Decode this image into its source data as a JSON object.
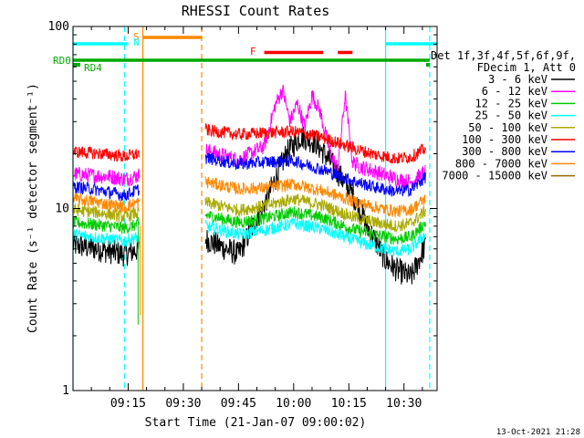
{
  "chart_data": {
    "type": "line",
    "title": "RHESSI Count Rates",
    "xlabel": "Start Time (21-Jan-07 09:00:02)",
    "ylabel": "Count Rate (s⁻¹ detector segment⁻¹)",
    "y_scale": "log",
    "ylim": [
      1,
      100
    ],
    "xlim_minutes": [
      0,
      99
    ],
    "x_ticks": [
      "09:15",
      "09:30",
      "09:45",
      "10:00",
      "10:15",
      "10:30"
    ],
    "x_tick_minutes": [
      15,
      30,
      45,
      60,
      75,
      90
    ],
    "y_ticks": [
      "1",
      "10",
      "100"
    ],
    "y_tick_values": [
      1,
      10,
      100
    ],
    "legend_header": [
      "Det 1f,3f,4f,5f,6f,9f,",
      "FDecim 1, Att 0"
    ],
    "legend_position": "right",
    "timestamp": "13-Oct-2021 21:28",
    "data_gap_minutes": [
      18,
      36
    ],
    "series": [
      {
        "name": "3 - 6 keV",
        "color": "#000000",
        "x": [
          0,
          5,
          10,
          14,
          17,
          36,
          40,
          45,
          52,
          58,
          62,
          66,
          70,
          76,
          80,
          85,
          88,
          92,
          96
        ],
        "values": [
          6.3,
          6.1,
          5.8,
          5.6,
          5.9,
          6.8,
          6.2,
          5.6,
          10.5,
          20,
          25,
          23,
          18,
          12,
          8,
          5.2,
          4.6,
          4.2,
          6.4
        ]
      },
      {
        "name": "6 - 12 keV",
        "color": "#ff00ff",
        "x": [
          0,
          5,
          10,
          14,
          17,
          36,
          45,
          52,
          55,
          57,
          59,
          61,
          63,
          65,
          67,
          70,
          72,
          74,
          76,
          78,
          82,
          88,
          92,
          96
        ],
        "values": [
          15.5,
          15.2,
          15,
          14.5,
          15,
          21,
          18.5,
          22,
          37,
          45,
          30,
          38,
          28,
          42,
          35,
          20,
          16.5,
          42,
          18,
          17,
          16,
          14.5,
          14,
          16
        ]
      },
      {
        "name": "12 - 25 keV",
        "color": "#00cc00",
        "x": [
          0,
          5,
          10,
          14,
          17,
          36,
          45,
          52,
          60,
          68,
          76,
          82,
          88,
          92,
          96
        ],
        "values": [
          8.4,
          8.2,
          8,
          7.8,
          8.1,
          9.2,
          8.4,
          8.8,
          9.6,
          8.9,
          7.7,
          7.2,
          6.8,
          7,
          8.4
        ]
      },
      {
        "name": "25 - 50 keV",
        "color": "#00ffff",
        "x": [
          0,
          5,
          10,
          14,
          17,
          36,
          45,
          52,
          60,
          68,
          76,
          82,
          88,
          92,
          96
        ],
        "values": [
          7.2,
          7,
          6.8,
          6.6,
          6.9,
          8,
          7.2,
          7.6,
          8.3,
          7.7,
          6.7,
          6.2,
          5.8,
          6,
          7.3
        ]
      },
      {
        "name": "50 - 100 keV",
        "color": "#aaaa00",
        "x": [
          0,
          5,
          10,
          14,
          17,
          36,
          45,
          52,
          60,
          68,
          76,
          82,
          88,
          92,
          96
        ],
        "values": [
          9.8,
          9.6,
          9.3,
          9,
          9.4,
          10.8,
          9.8,
          10.3,
          11.3,
          10.4,
          9,
          8.4,
          8,
          8.3,
          9.8
        ]
      },
      {
        "name": "100 - 300 keV",
        "color": "#ff0000",
        "x": [
          0,
          5,
          10,
          14,
          17,
          36,
          45,
          52,
          60,
          68,
          76,
          82,
          88,
          92,
          96
        ],
        "values": [
          20.5,
          20.2,
          19.8,
          19.3,
          19.8,
          27,
          25.5,
          26,
          26.5,
          24.5,
          21.5,
          19.8,
          18.8,
          19.2,
          21.5
        ]
      },
      {
        "name": "300 - 800 keV",
        "color": "#0000ff",
        "x": [
          0,
          5,
          10,
          14,
          17,
          36,
          45,
          52,
          60,
          68,
          76,
          82,
          88,
          92,
          96
        ],
        "values": [
          13.2,
          12.8,
          12.3,
          11.8,
          12.5,
          19,
          17.5,
          18,
          18.3,
          16.3,
          14.2,
          13.1,
          12.4,
          12.7,
          15
        ]
      },
      {
        "name": "800 - 7000 keV",
        "color": "#ff8800",
        "x": [
          0,
          5,
          10,
          14,
          17,
          36,
          45,
          52,
          60,
          68,
          76,
          82,
          88,
          92,
          96
        ],
        "values": [
          11.3,
          11,
          10.5,
          10.2,
          10.7,
          14,
          12.8,
          13,
          13.6,
          12.5,
          11,
          10.2,
          9.6,
          9.9,
          11.4
        ]
      },
      {
        "name": "7000 - 15000 keV",
        "color": "#996600",
        "x": [],
        "values": []
      }
    ],
    "annotations": [
      {
        "label": "S",
        "color": "#ff8800"
      },
      {
        "label": "N",
        "color": "#00ffff"
      },
      {
        "label": "F",
        "color": "#ff0000"
      },
      {
        "label": "RD0",
        "color": "#00aa00"
      },
      {
        "label": "RD4",
        "color": "#00aa00"
      }
    ],
    "flag_bars": [
      {
        "label": "S",
        "color": "#ff8800",
        "x_start": 19,
        "x_end": 35
      },
      {
        "label": "N",
        "color": "#00ffff",
        "x_start": 0,
        "x_end": 15
      },
      {
        "label": "N",
        "color": "#00ffff",
        "x_start": 85,
        "x_end": 99
      },
      {
        "label": "F",
        "color": "#ff0000",
        "x_start": 52,
        "x_end": 68
      },
      {
        "label": "F",
        "color": "#ff0000",
        "x_start": 72,
        "x_end": 76
      },
      {
        "label": "RD0",
        "color": "#00aa00",
        "x_start": 0,
        "x_end": 97
      },
      {
        "label": "RD4",
        "color": "#00aa00",
        "x_start": 0,
        "x_end": 2
      },
      {
        "label": "RD4",
        "color": "#00aa00",
        "x_start": 96,
        "x_end": 97
      }
    ],
    "vertical_markers": [
      {
        "minute": 0,
        "color": "#00ffff",
        "style": "solid"
      },
      {
        "minute": 14,
        "color": "#00ffff",
        "style": "dashed"
      },
      {
        "minute": 19,
        "color": "#ff8800",
        "style": "solid"
      },
      {
        "minute": 35,
        "color": "#ff8800",
        "style": "dashed"
      },
      {
        "minute": 85,
        "color": "#00ffff",
        "style": "solid"
      },
      {
        "minute": 97,
        "color": "#00ffff",
        "style": "dashed"
      }
    ],
    "grid": false
  }
}
